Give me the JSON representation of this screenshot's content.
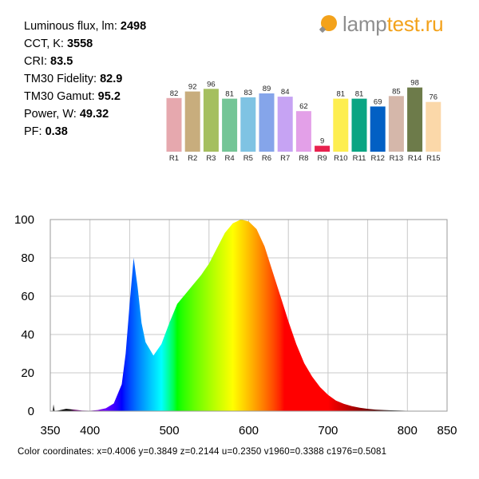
{
  "metrics": [
    {
      "label": "Luminous flux, lm: ",
      "value": "2498"
    },
    {
      "label": "CCT, K: ",
      "value": "3558"
    },
    {
      "label": "CRI: ",
      "value": "83.5"
    },
    {
      "label": "TM30 Fidelity: ",
      "value": "82.9"
    },
    {
      "label": "TM30 Gamut: ",
      "value": "95.2"
    },
    {
      "label": "Power, W:  ",
      "value": "49.32"
    },
    {
      "label": "PF:  ",
      "value": "0.38"
    }
  ],
  "logo": {
    "part1": "lamp",
    "part2": "test.ru",
    "icon": "lamp-bulb-icon",
    "color_main": "#f3a21b",
    "color_text": "#8f8f8f"
  },
  "chart_data": [
    {
      "type": "bar",
      "categories": [
        "R1",
        "R2",
        "R3",
        "R4",
        "R5",
        "R6",
        "R7",
        "R8",
        "R9",
        "R10",
        "R11",
        "R12",
        "R13",
        "R14",
        "R15"
      ],
      "values": [
        82,
        92,
        96,
        81,
        83,
        89,
        84,
        62,
        9,
        81,
        81,
        69,
        85,
        98,
        76
      ],
      "colors": [
        "#e6a8ae",
        "#c8ad7d",
        "#a5bf5f",
        "#74c596",
        "#7fc3e3",
        "#85a5ea",
        "#c6a3f3",
        "#e3a0e8",
        "#e8214e",
        "#fdee50",
        "#0aa583",
        "#0260c4",
        "#d5b7aa",
        "#6d7b4a",
        "#fbd8a9"
      ],
      "ylim": [
        0,
        100
      ]
    },
    {
      "type": "area",
      "title": "",
      "xlabel": "",
      "ylabel": "",
      "xlim": [
        350,
        850
      ],
      "ylim": [
        0,
        100
      ],
      "x_ticks": [
        "350",
        "400",
        "500",
        "600",
        "700",
        "800",
        "850"
      ],
      "y_ticks": [
        "100",
        "80",
        "60",
        "40",
        "20",
        "0"
      ],
      "grid": true,
      "x": [
        350,
        360,
        370,
        380,
        390,
        400,
        410,
        420,
        430,
        440,
        445,
        450,
        455,
        460,
        465,
        470,
        480,
        490,
        500,
        510,
        520,
        530,
        540,
        550,
        560,
        570,
        580,
        590,
        600,
        610,
        620,
        630,
        640,
        650,
        660,
        670,
        680,
        690,
        700,
        710,
        720,
        730,
        740,
        750,
        760,
        770,
        780,
        790,
        800,
        810,
        820,
        830,
        840,
        850
      ],
      "y": [
        0,
        0.3,
        1.2,
        0.8,
        0.3,
        0.2,
        0.6,
        1.5,
        4,
        14,
        30,
        56,
        80,
        65,
        46,
        36,
        29,
        35,
        46,
        56,
        61,
        66,
        71,
        77,
        85,
        93,
        98,
        100,
        99,
        95,
        86,
        73,
        60,
        47,
        35,
        25,
        18,
        12.5,
        8.5,
        5.5,
        3.8,
        2.6,
        1.8,
        1.2,
        0.8,
        0.6,
        0.4,
        0.3,
        0.2,
        0.1,
        0.05,
        0.02,
        0.01,
        0
      ],
      "spike": {
        "x": 354,
        "y": 3.6
      }
    }
  ],
  "color_coordinates": "Color coordinates: x=0.4006 y=0.3849 z=0.2144 u=0.2350 v1960=0.3388 c1976=0.5081"
}
